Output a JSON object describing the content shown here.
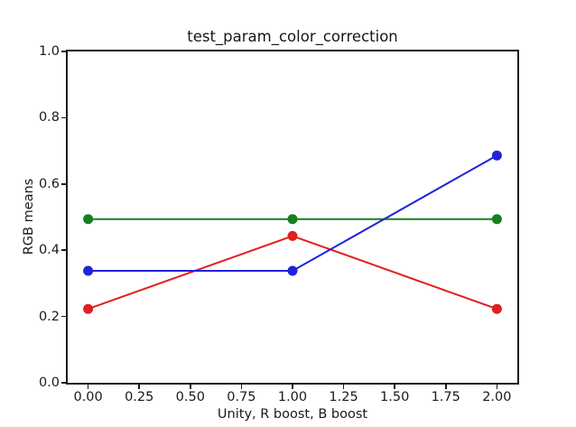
{
  "figure": {
    "background": "#ffffff",
    "text_color": "#1a1a1a"
  },
  "chart_data": {
    "type": "line",
    "title": "test_param_color_correction",
    "xlabel": "Unity, R boost, B boost",
    "ylabel": "RGB means",
    "x": [
      0,
      1,
      2
    ],
    "series": [
      {
        "name": "red-line",
        "color": "#e01f1f",
        "marker": "circle",
        "values": [
          0.223,
          0.443,
          0.223
        ]
      },
      {
        "name": "green-line",
        "color": "#168021",
        "marker": "circle",
        "values": [
          0.494,
          0.494,
          0.494
        ]
      },
      {
        "name": "blue-line",
        "color": "#2222d6",
        "marker": "circle",
        "values": [
          0.338,
          0.338,
          0.686
        ]
      }
    ],
    "xlim": [
      -0.1,
      2.1
    ],
    "ylim": [
      0,
      1
    ],
    "xticks": {
      "values": [
        0,
        0.25,
        0.5,
        0.75,
        1,
        1.25,
        1.5,
        1.75,
        2
      ],
      "labels": [
        "0.00",
        "0.25",
        "0.50",
        "0.75",
        "1.00",
        "1.25",
        "1.50",
        "1.75",
        "2.00"
      ]
    },
    "yticks": {
      "values": [
        0,
        0.2,
        0.4,
        0.6,
        0.8,
        1.0
      ],
      "labels": [
        "0.0",
        "0.2",
        "0.4",
        "0.6",
        "0.8",
        "1.0"
      ]
    },
    "grid": false,
    "legend": "none"
  }
}
